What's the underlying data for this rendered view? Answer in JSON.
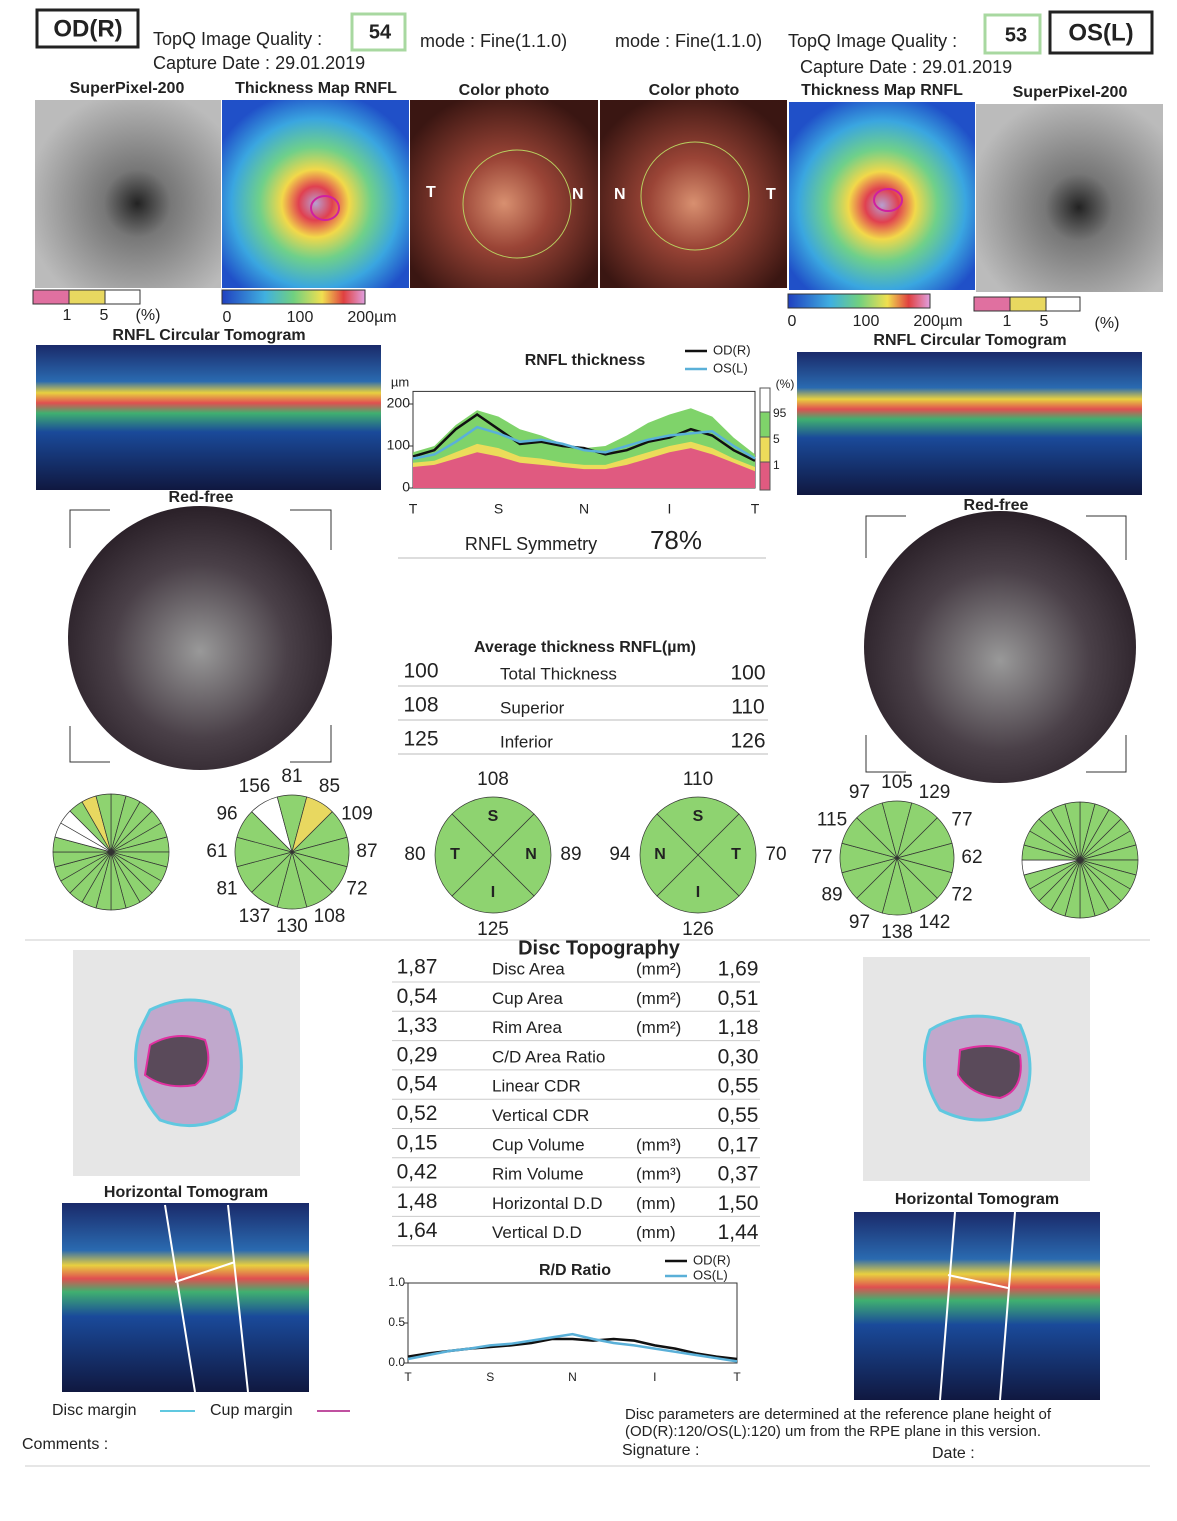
{
  "od_header": {
    "eye": "OD(R)",
    "quality_label": "TopQ Image Quality :",
    "quality": 54,
    "mode": "mode : Fine(1.1.0)",
    "capture": "Capture Date : 29.01.2019"
  },
  "os_header": {
    "eye": "OS(L)",
    "quality_label": "TopQ Image Quality :",
    "quality": 53,
    "mode": "mode : Fine(1.1.0)",
    "capture": "Capture Date : 29.01.2019"
  },
  "image_labels": [
    "SuperPixel-200",
    "Thickness Map RNFL",
    "Color photo",
    "Color photo",
    "Thickness Map RNFL",
    "SuperPixel-200"
  ],
  "photo_markers": [
    "T",
    "N",
    "N",
    "T"
  ],
  "od_scales": {
    "superpixel": [
      "1",
      "5",
      "(%)"
    ],
    "thickness": [
      "0",
      "100",
      "200µm"
    ]
  },
  "os_scales": {
    "superpixel": [
      "1",
      "5",
      "(%)"
    ],
    "thickness": [
      "0",
      "100",
      "200µm"
    ]
  },
  "tomogram_labels": [
    "RNFL Circular Tomogram",
    "RNFL Circular Tomogram"
  ],
  "rnfl_chart": {
    "type": "line",
    "title": "RNFL thickness",
    "unit": "µm",
    "categories": [
      "T",
      "S",
      "N",
      "I",
      "T"
    ],
    "ylim": [
      0,
      230
    ],
    "yticks": [
      0,
      100,
      200
    ],
    "percentile_label": "(%)",
    "percentiles": [
      95,
      5,
      1
    ],
    "bands": [
      {
        "color": "#7fd36a",
        "values": [
          85,
          100,
          150,
          185,
          170,
          140,
          125,
          105,
          95,
          100,
          125,
          155,
          175,
          190,
          170,
          120,
          80
        ]
      },
      {
        "color": "#ecdc5a",
        "values": [
          60,
          65,
          85,
          105,
          95,
          75,
          70,
          60,
          55,
          55,
          70,
          85,
          100,
          110,
          95,
          70,
          50
        ]
      },
      {
        "color": "#e05a80",
        "values": [
          50,
          55,
          70,
          85,
          75,
          60,
          55,
          50,
          45,
          45,
          55,
          70,
          85,
          95,
          80,
          60,
          40
        ]
      }
    ],
    "series": [
      {
        "name": "OD(R)",
        "color": "#111111",
        "values": [
          75,
          90,
          140,
          175,
          140,
          105,
          110,
          100,
          95,
          80,
          90,
          110,
          120,
          140,
          125,
          90,
          65
        ]
      },
      {
        "name": "OS(L)",
        "color": "#5ab0d8",
        "values": [
          70,
          80,
          110,
          145,
          130,
          110,
          115,
          105,
          90,
          85,
          100,
          115,
          125,
          130,
          135,
          100,
          70
        ]
      }
    ]
  },
  "symmetry": {
    "label": "RNFL Symmetry",
    "value": "78%"
  },
  "red_free_labels": [
    "Red-free",
    "Red-free"
  ],
  "average": {
    "title": "Average thickness RNFL(µm)",
    "rows": [
      [
        100,
        "Total Thickness",
        100
      ],
      [
        108,
        "Superior",
        110
      ],
      [
        125,
        "Inferior",
        126
      ]
    ]
  },
  "od_clock": [
    156,
    81,
    85,
    109,
    87,
    72,
    108,
    130,
    137,
    81,
    61,
    96
  ],
  "os_clock": [
    97,
    105,
    129,
    77,
    62,
    72,
    142,
    138,
    97,
    89,
    77,
    115
  ],
  "od_quadrants": {
    "letters": [
      "S",
      "N",
      "I",
      "T"
    ],
    "values": [
      108,
      89,
      125,
      80
    ]
  },
  "os_quadrants": {
    "letters": [
      "S",
      "T",
      "I",
      "N"
    ],
    "values": [
      110,
      70,
      126,
      94
    ]
  },
  "disc_topography": {
    "title": "Disc Topography",
    "rows": [
      [
        "1,87",
        "Disc Area",
        "(mm²)",
        "1,69"
      ],
      [
        "0,54",
        "Cup Area",
        "(mm²)",
        "0,51"
      ],
      [
        "1,33",
        "Rim Area",
        "(mm²)",
        "1,18"
      ],
      [
        "0,29",
        "C/D Area Ratio",
        "",
        "0,30"
      ],
      [
        "0,54",
        "Linear CDR",
        "",
        "0,55"
      ],
      [
        "0,52",
        "Vertical CDR",
        "",
        "0,55"
      ],
      [
        "0,15",
        "Cup Volume",
        "(mm³)",
        "0,17"
      ],
      [
        "0,42",
        "Rim Volume",
        "(mm³)",
        "0,37"
      ],
      [
        "1,48",
        "Horizontal D.D",
        "(mm)",
        "1,50"
      ],
      [
        "1,64",
        "Vertical D.D",
        "(mm)",
        "1,44"
      ]
    ]
  },
  "rd_chart": {
    "type": "line",
    "title": "R/D Ratio",
    "categories": [
      "T",
      "S",
      "N",
      "I",
      "T"
    ],
    "ylim": [
      0,
      1
    ],
    "yticks": [
      {
        "value": 0,
        "label": "0.0"
      },
      0.5,
      {
        "value": 1,
        "label": "1.0"
      }
    ],
    "series": [
      {
        "name": "OD(R)",
        "color": "#111111",
        "values": [
          0.08,
          0.12,
          0.15,
          0.18,
          0.2,
          0.22,
          0.25,
          0.3,
          0.3,
          0.28,
          0.3,
          0.28,
          0.22,
          0.18,
          0.12,
          0.08,
          0.05
        ]
      },
      {
        "name": "OS(L)",
        "color": "#5ab0d8",
        "values": [
          0.05,
          0.1,
          0.15,
          0.18,
          0.22,
          0.24,
          0.28,
          0.32,
          0.36,
          0.3,
          0.25,
          0.22,
          0.18,
          0.14,
          0.1,
          0.06,
          0.02
        ]
      }
    ]
  },
  "horizontal_labels": [
    "Horizontal Tomogram",
    "Horizontal Tomogram"
  ],
  "margins": {
    "disc": "Disc margin",
    "cup": "Cup margin"
  },
  "footer": {
    "comments": "Comments :",
    "note": [
      "Disc parameters are determined at the reference plane height of",
      "(OD(R):120/OS(L):120) um from the RPE plane in this version."
    ],
    "signature": "Signature :",
    "date": "Date :"
  }
}
